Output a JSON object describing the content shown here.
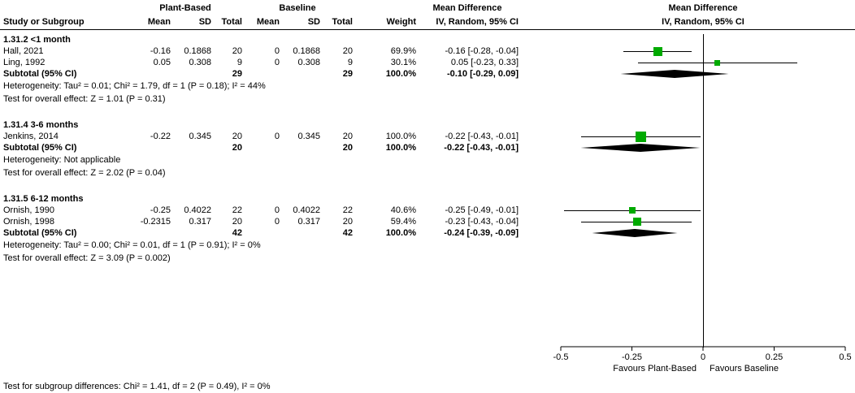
{
  "table": {
    "group_headers": {
      "treatment": "Plant-Based",
      "control": "Baseline",
      "md_text": "Mean Difference",
      "md_plot": "Mean Difference"
    },
    "col_headers": {
      "study": "Study or Subgroup",
      "mean1": "Mean",
      "sd1": "SD",
      "total1": "Total",
      "mean2": "Mean",
      "sd2": "SD",
      "total2": "Total",
      "weight": "Weight",
      "ci_text": "IV, Random, 95% CI",
      "ci_plot": "IV, Random, 95% CI"
    }
  },
  "chart_data": {
    "type": "forest",
    "effect_measure": "Mean Difference",
    "method": "IV, Random, 95% CI",
    "x_axis": {
      "min": -0.5,
      "max": 0.5,
      "ticks": [
        -0.5,
        -0.25,
        0,
        0.25,
        0.5
      ],
      "tick_labels": [
        "-0.5",
        "-0.25",
        "0",
        "0.25",
        "0.5"
      ]
    },
    "favours_left": "Favours Plant-Based",
    "favours_right": "Favours Baseline",
    "subgroups": [
      {
        "label": "1.31.2 <1 month",
        "studies": [
          {
            "name": "Hall, 2021",
            "mean1": "-0.16",
            "sd1": "0.1868",
            "n1": "20",
            "mean2": "0",
            "sd2": "0.1868",
            "n2": "20",
            "weight": "69.9%",
            "ci": "-0.16 [-0.28, -0.04]",
            "est": -0.16,
            "lo": -0.28,
            "hi": -0.04,
            "weight_pct": 69.9
          },
          {
            "name": "Ling, 1992",
            "mean1": "0.05",
            "sd1": "0.308",
            "n1": "9",
            "mean2": "0",
            "sd2": "0.308",
            "n2": "9",
            "weight": "30.1%",
            "ci": "0.05 [-0.23, 0.33]",
            "est": 0.05,
            "lo": -0.23,
            "hi": 0.33,
            "weight_pct": 30.1
          }
        ],
        "subtotal": {
          "label": "Subtotal (95% CI)",
          "n1": "29",
          "n2": "29",
          "weight": "100.0%",
          "ci": "-0.10 [-0.29, 0.09]",
          "est": -0.1,
          "lo": -0.29,
          "hi": 0.09
        },
        "heterogeneity": "Heterogeneity: Tau² = 0.01; Chi² = 1.79, df = 1 (P = 0.18); I² = 44%",
        "overall_effect": "Test for overall effect: Z = 1.01 (P = 0.31)"
      },
      {
        "label": "1.31.4 3-6 months",
        "studies": [
          {
            "name": "Jenkins, 2014",
            "mean1": "-0.22",
            "sd1": "0.345",
            "n1": "20",
            "mean2": "0",
            "sd2": "0.345",
            "n2": "20",
            "weight": "100.0%",
            "ci": "-0.22 [-0.43, -0.01]",
            "est": -0.22,
            "lo": -0.43,
            "hi": -0.01,
            "weight_pct": 100
          }
        ],
        "subtotal": {
          "label": "Subtotal (95% CI)",
          "n1": "20",
          "n2": "20",
          "weight": "100.0%",
          "ci": "-0.22 [-0.43, -0.01]",
          "est": -0.22,
          "lo": -0.43,
          "hi": -0.01
        },
        "heterogeneity": "Heterogeneity: Not applicable",
        "overall_effect": "Test for overall effect: Z = 2.02 (P = 0.04)"
      },
      {
        "label": "1.31.5 6-12 months",
        "studies": [
          {
            "name": "Ornish, 1990",
            "mean1": "-0.25",
            "sd1": "0.4022",
            "n1": "22",
            "mean2": "0",
            "sd2": "0.4022",
            "n2": "22",
            "weight": "40.6%",
            "ci": "-0.25 [-0.49, -0.01]",
            "est": -0.25,
            "lo": -0.49,
            "hi": -0.01,
            "weight_pct": 40.6
          },
          {
            "name": "Ornish, 1998",
            "mean1": "-0.2315",
            "sd1": "0.317",
            "n1": "20",
            "mean2": "0",
            "sd2": "0.317",
            "n2": "20",
            "weight": "59.4%",
            "ci": "-0.23 [-0.43, -0.04]",
            "est": -0.2315,
            "lo": -0.43,
            "hi": -0.04,
            "weight_pct": 59.4
          }
        ],
        "subtotal": {
          "label": "Subtotal (95% CI)",
          "n1": "42",
          "n2": "42",
          "weight": "100.0%",
          "ci": "-0.24 [-0.39, -0.09]",
          "est": -0.24,
          "lo": -0.39,
          "hi": -0.09
        },
        "heterogeneity": "Heterogeneity: Tau² = 0.00; Chi² = 0.01, df = 1 (P = 0.91); I² = 0%",
        "overall_effect": "Test for overall effect: Z = 3.09 (P = 0.002)"
      }
    ],
    "subgroup_test": "Test for subgroup differences: Chi² = 1.41, df = 2 (P = 0.49), I² = 0%"
  },
  "colors": {
    "square": "#00aa00",
    "diamond": "#000000",
    "line": "#000000"
  }
}
